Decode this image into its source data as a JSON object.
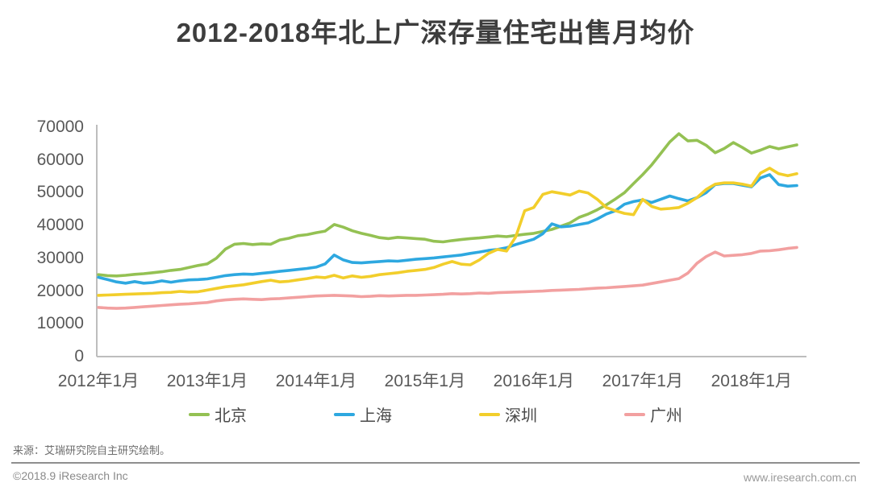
{
  "title": "2012-2018年北上广深存量住宅出售月均价",
  "source_note": "来源：艾瑞研究院自主研究绘制。",
  "footer": {
    "copyright": "©2018.9 iResearch Inc",
    "website": "www.iresearch.com.cn"
  },
  "colors": {
    "title_text": "#3d3d3d",
    "axis_line": "#bdbdbd",
    "tick_text": "#595959",
    "beijing": "#94C153",
    "shanghai": "#2EA8E0",
    "shenzhen": "#F2CE2B",
    "guangzhou": "#F2A0A0"
  },
  "chart_data": {
    "type": "line",
    "title": "2012-2018年北上广深存量住宅出售月均价",
    "xlabel": "",
    "ylabel": "",
    "x_start": "2012-01",
    "x_end": "2018-06",
    "months_total": 78,
    "x_tick_labels": [
      "2012年1月",
      "2013年1月",
      "2014年1月",
      "2015年1月",
      "2016年1月",
      "2017年1月",
      "2018年1月"
    ],
    "x_tick_month_indices": [
      0,
      12,
      24,
      36,
      48,
      60,
      72
    ],
    "y_ticks": [
      0,
      10000,
      20000,
      30000,
      40000,
      50000,
      60000,
      70000
    ],
    "ylim": [
      0,
      70000
    ],
    "grid": false,
    "legend_position": "bottom",
    "series": [
      {
        "id": "beijing",
        "name": "北京",
        "color": "#94C153",
        "values": [
          25000,
          24700,
          24600,
          24800,
          25100,
          25300,
          25600,
          25900,
          26300,
          26600,
          27200,
          27800,
          28300,
          30000,
          32800,
          34300,
          34500,
          34200,
          34400,
          34300,
          35600,
          36100,
          36900,
          37200,
          37800,
          38300,
          40300,
          39500,
          38400,
          37600,
          37000,
          36300,
          36000,
          36400,
          36200,
          36000,
          35800,
          35200,
          35000,
          35400,
          35700,
          36000,
          36200,
          36500,
          36800,
          36600,
          37000,
          37300,
          37600,
          38200,
          38800,
          39800,
          40800,
          42500,
          43500,
          44800,
          46300,
          48100,
          50000,
          52800,
          55500,
          58500,
          62000,
          65500,
          68000,
          65800,
          66000,
          64500,
          62200,
          63500,
          65300,
          63800,
          62100,
          63000,
          64100,
          63400,
          64000,
          64600
        ]
      },
      {
        "id": "shanghai",
        "name": "上海",
        "color": "#2EA8E0",
        "values": [
          24200,
          23500,
          22800,
          22400,
          22900,
          22400,
          22600,
          23100,
          22700,
          23100,
          23400,
          23500,
          23700,
          24200,
          24700,
          25000,
          25200,
          25100,
          25400,
          25700,
          26000,
          26300,
          26600,
          26900,
          27300,
          28300,
          31000,
          29500,
          28700,
          28600,
          28800,
          29000,
          29200,
          29100,
          29400,
          29700,
          29900,
          30100,
          30400,
          30700,
          31000,
          31500,
          31900,
          32400,
          32700,
          33200,
          34200,
          35000,
          35800,
          37500,
          40500,
          39600,
          39800,
          40300,
          40800,
          42000,
          43500,
          44500,
          46500,
          47300,
          47800,
          47000,
          48000,
          49000,
          48200,
          47500,
          48500,
          50000,
          52500,
          52800,
          52800,
          52300,
          51800,
          54500,
          55500,
          52500,
          52000,
          52200
        ]
      },
      {
        "id": "shenzhen",
        "name": "深圳",
        "color": "#F2CE2B",
        "values": [
          18700,
          18800,
          18900,
          19000,
          19100,
          19200,
          19300,
          19500,
          19600,
          19900,
          19700,
          19800,
          20300,
          20800,
          21300,
          21600,
          21900,
          22400,
          22900,
          23300,
          22800,
          23000,
          23400,
          23800,
          24300,
          24100,
          24800,
          24000,
          24600,
          24200,
          24500,
          25000,
          25300,
          25600,
          26000,
          26300,
          26600,
          27200,
          28200,
          29000,
          28200,
          28000,
          29500,
          31500,
          32700,
          32200,
          36500,
          44500,
          45500,
          49500,
          50300,
          49800,
          49300,
          50500,
          49900,
          48000,
          45500,
          44500,
          43700,
          43300,
          48000,
          45800,
          45000,
          45200,
          45500,
          46800,
          48500,
          51000,
          52600,
          53000,
          53000,
          52600,
          52000,
          56000,
          57500,
          55800,
          55200,
          55800
        ]
      },
      {
        "id": "guangzhou",
        "name": "广州",
        "color": "#F2A0A0",
        "values": [
          15000,
          14800,
          14700,
          14800,
          15000,
          15200,
          15400,
          15600,
          15800,
          16000,
          16100,
          16300,
          16500,
          17000,
          17300,
          17500,
          17600,
          17500,
          17400,
          17600,
          17700,
          17900,
          18100,
          18300,
          18500,
          18600,
          18700,
          18600,
          18500,
          18300,
          18400,
          18600,
          18500,
          18600,
          18700,
          18700,
          18800,
          18900,
          19000,
          19200,
          19100,
          19200,
          19400,
          19300,
          19500,
          19600,
          19700,
          19800,
          19900,
          20000,
          20200,
          20300,
          20400,
          20500,
          20700,
          20900,
          21000,
          21200,
          21400,
          21600,
          21800,
          22300,
          22800,
          23300,
          23800,
          25500,
          28500,
          30500,
          31900,
          30700,
          30900,
          31100,
          31500,
          32200,
          32300,
          32600,
          33000,
          33300
        ]
      }
    ]
  }
}
